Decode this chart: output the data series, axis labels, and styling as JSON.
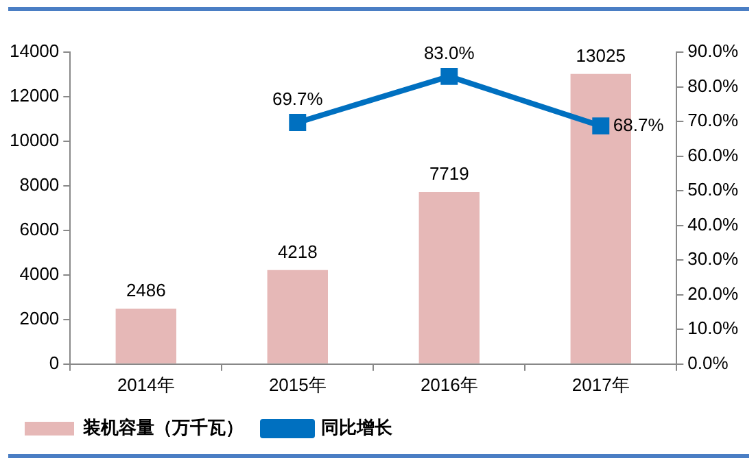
{
  "chart_data": {
    "type": "bar",
    "categories": [
      "2014年",
      "2015年",
      "2016年",
      "2017年"
    ],
    "series": [
      {
        "name": "装机容量（万千瓦）",
        "color": "#e6b8b7",
        "values": [
          2486,
          4218,
          7719,
          13025
        ],
        "value_labels": [
          "2486",
          "4218",
          "7719",
          "13025"
        ]
      },
      {
        "name": "同比增长",
        "type": "line",
        "axis": "y2",
        "color": "#0070c0",
        "marker": "square",
        "values": [
          null,
          69.7,
          83.0,
          68.7
        ],
        "value_labels": [
          null,
          "69.7%",
          "83.0%",
          "68.7%"
        ]
      }
    ],
    "ylim": [
      0,
      14000
    ],
    "yticks": [
      0,
      2000,
      4000,
      6000,
      8000,
      10000,
      12000,
      14000
    ],
    "y2lim": [
      0,
      90
    ],
    "y2ticks": [
      {
        "value": 0,
        "label": "0.0%"
      },
      {
        "value": 10,
        "label": "10.0%"
      },
      {
        "value": 20,
        "label": "20.0%"
      },
      {
        "value": 30,
        "label": "30.0%"
      },
      {
        "value": 40,
        "label": "40.0%"
      },
      {
        "value": 50,
        "label": "50.0%"
      },
      {
        "value": 60,
        "label": "60.0%"
      },
      {
        "value": 70,
        "label": "70.0%"
      },
      {
        "value": 80,
        "label": "80.0%"
      },
      {
        "value": 90,
        "label": "90.0%"
      }
    ],
    "grid": false,
    "legend": "bottom"
  }
}
